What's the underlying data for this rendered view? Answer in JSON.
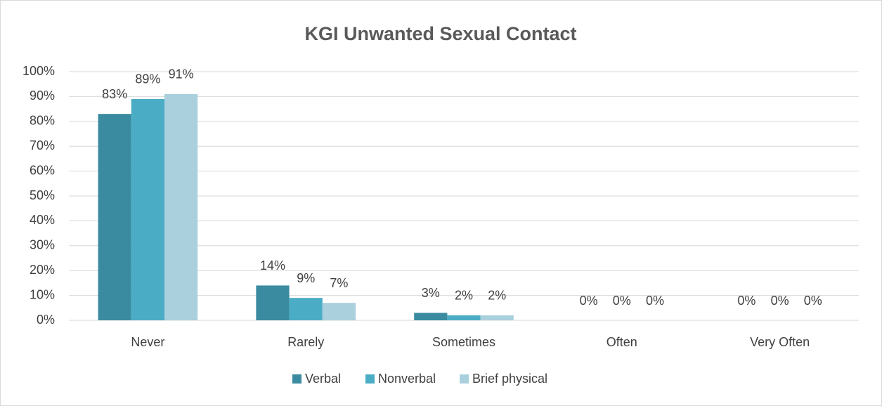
{
  "chart_data": {
    "type": "bar",
    "title": "KGI Unwanted Sexual Contact",
    "categories": [
      "Never",
      "Rarely",
      "Sometimes",
      "Often",
      "Very Often"
    ],
    "series": [
      {
        "name": "Verbal",
        "color": "#3a8ba0",
        "values": [
          83,
          14,
          3,
          0,
          0
        ],
        "value_labels": [
          "83%",
          "14%",
          "3%",
          "0%",
          "0%"
        ]
      },
      {
        "name": "Nonverbal",
        "color": "#4bacc6",
        "values": [
          89,
          9,
          2,
          0,
          0
        ],
        "value_labels": [
          "89%",
          "9%",
          "2%",
          "0%",
          "0%"
        ]
      },
      {
        "name": "Brief physical",
        "color": "#a9d0dc",
        "values": [
          91,
          7,
          2,
          0,
          0
        ],
        "value_labels": [
          "91%",
          "7%",
          "2%",
          "0%",
          "0%"
        ]
      }
    ],
    "ylim": [
      0,
      100
    ],
    "yticks": [
      {
        "value": 0,
        "label": "0%"
      },
      {
        "value": 10,
        "label": "10%"
      },
      {
        "value": 20,
        "label": "20%"
      },
      {
        "value": 30,
        "label": "30%"
      },
      {
        "value": 40,
        "label": "40%"
      },
      {
        "value": 50,
        "label": "50%"
      },
      {
        "value": 60,
        "label": "60%"
      },
      {
        "value": 70,
        "label": "70%"
      },
      {
        "value": 80,
        "label": "80%"
      },
      {
        "value": 90,
        "label": "90%"
      },
      {
        "value": 100,
        "label": "100%"
      }
    ],
    "grid": true,
    "legend": "bottom"
  }
}
